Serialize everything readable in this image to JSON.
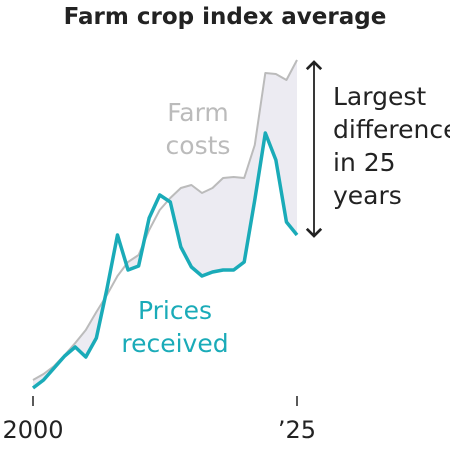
{
  "chart_data": {
    "type": "line",
    "title": "Farm crop index average",
    "x": [
      2000,
      2001,
      2002,
      2003,
      2004,
      2005,
      2006,
      2007,
      2008,
      2009,
      2010,
      2011,
      2012,
      2013,
      2014,
      2015,
      2016,
      2017,
      2018,
      2019,
      2020,
      2021,
      2022,
      2023,
      2024,
      2025
    ],
    "series": [
      {
        "name": "Farm costs",
        "color": "#bbbbbb",
        "values": [
          5,
          8,
          12,
          17.5,
          23.5,
          30,
          39,
          47.5,
          57,
          64,
          67.5,
          80,
          90,
          96,
          101,
          102.5,
          98.5,
          101,
          106,
          106.5,
          106,
          122.5,
          158.5,
          158,
          155,
          165
        ]
      },
      {
        "name": "Prices received",
        "color": "#1aabb8",
        "values": [
          1,
          5,
          11,
          17,
          21.5,
          16.5,
          26,
          50.5,
          77.5,
          60,
          62,
          86,
          97.5,
          94,
          71.5,
          61.5,
          57,
          59,
          60,
          60,
          64,
          95,
          128.5,
          115,
          84,
          77.5
        ]
      }
    ],
    "fill_between_color": "#ecebf2",
    "annotation": "Largest difference in 25 years",
    "xlim": [
      2000,
      2025
    ],
    "xticks": [
      2000,
      {
        "value": 2025,
        "label": "’25"
      }
    ],
    "ylim": [
      0,
      170
    ]
  }
}
